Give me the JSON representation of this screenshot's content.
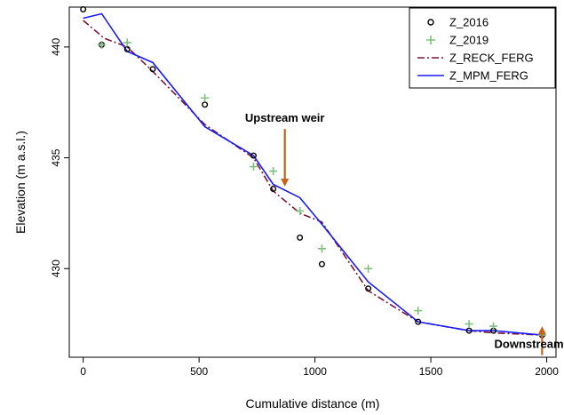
{
  "chart_data": {
    "type": "line",
    "title": "",
    "xlabel": "Cumulative distance (m)",
    "ylabel": "Elevation (m a.s.l.)",
    "xlim": [
      -60,
      2040
    ],
    "ylim": [
      426.0,
      441.8
    ],
    "xticks": [
      0,
      500,
      1000,
      1500,
      2000
    ],
    "yticks": [
      430,
      435,
      440
    ],
    "grid": false,
    "legend_position": "top-right",
    "series": [
      {
        "name": "Z_2016",
        "kind": "points",
        "marker": "circle",
        "color": "#000000",
        "x": [
          0,
          80,
          190,
          300,
          525,
          735,
          820,
          935,
          1030,
          1230,
          1445,
          1665,
          1770,
          1980
        ],
        "y": [
          441.7,
          440.1,
          439.9,
          439.0,
          437.4,
          435.1,
          433.6,
          431.4,
          430.2,
          429.1,
          427.6,
          427.2,
          427.2,
          427.0
        ]
      },
      {
        "name": "Z_2019",
        "kind": "points",
        "marker": "plus",
        "color": "#7fbf7f",
        "x": [
          80,
          190,
          525,
          735,
          820,
          935,
          1030,
          1230,
          1445,
          1665,
          1770,
          1980
        ],
        "y": [
          440.1,
          440.2,
          437.7,
          434.6,
          434.4,
          432.6,
          430.9,
          430.0,
          428.1,
          427.5,
          427.4,
          427.0
        ]
      },
      {
        "name": "Z_RECK_FERG",
        "kind": "line",
        "dash": "8,3,2,3",
        "color": "#7a1535",
        "x": [
          0,
          90,
          190,
          300,
          525,
          735,
          820,
          935,
          1030,
          1230,
          1445,
          1665,
          1770,
          1980
        ],
        "y": [
          441.2,
          440.4,
          440.0,
          438.9,
          436.5,
          435.0,
          433.5,
          432.5,
          432.1,
          429.0,
          427.6,
          427.2,
          427.1,
          427.0
        ]
      },
      {
        "name": "Z_MPM_FERG",
        "kind": "line",
        "dash": "",
        "color": "#1a1aff",
        "x": [
          0,
          80,
          190,
          300,
          525,
          735,
          820,
          935,
          1030,
          1230,
          1445,
          1665,
          1770,
          1980
        ],
        "y": [
          441.3,
          441.5,
          439.8,
          439.3,
          436.4,
          435.1,
          433.8,
          433.2,
          432.0,
          429.4,
          427.6,
          427.2,
          427.2,
          427.0
        ]
      }
    ],
    "annotations": [
      {
        "label": "Upstream weir",
        "x": 870,
        "y_from": 436.3,
        "y_to": 433.7,
        "color": "#c8621a"
      },
      {
        "label": "Downstream weir",
        "x": 1980,
        "y_from": 426.1,
        "y_to": 427.4,
        "color": "#c8621a"
      }
    ]
  }
}
